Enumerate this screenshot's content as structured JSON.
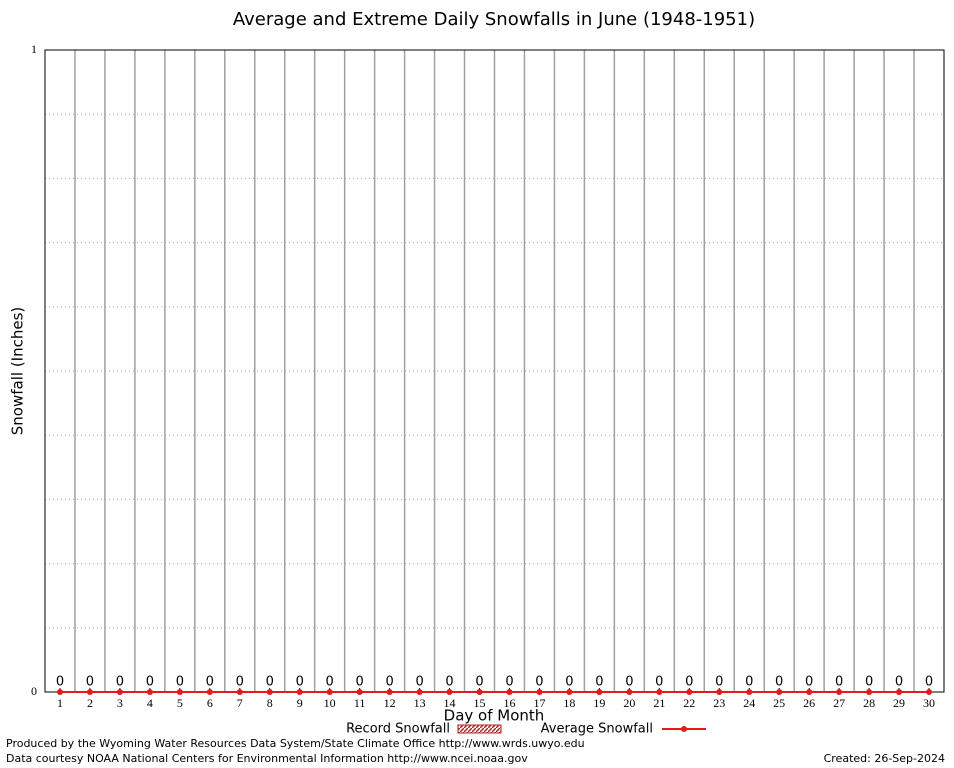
{
  "chart_data": {
    "type": "bar-line",
    "title": "Average and Extreme Daily Snowfalls in June (1948-1951)",
    "x_label": "Day of Month",
    "y_label": "Snowfall (Inches)",
    "categories": [
      "1",
      "2",
      "3",
      "4",
      "5",
      "6",
      "7",
      "8",
      "9",
      "10",
      "11",
      "12",
      "13",
      "14",
      "15",
      "16",
      "17",
      "18",
      "19",
      "20",
      "21",
      "22",
      "23",
      "24",
      "25",
      "26",
      "27",
      "28",
      "29",
      "30"
    ],
    "series": [
      {
        "name": "Record Snowfall",
        "color": "#b22222",
        "values": [
          0,
          0,
          0,
          0,
          0,
          0,
          0,
          0,
          0,
          0,
          0,
          0,
          0,
          0,
          0,
          0,
          0,
          0,
          0,
          0,
          0,
          0,
          0,
          0,
          0,
          0,
          0,
          0,
          0,
          0
        ]
      },
      {
        "name": "Average Snowfall",
        "color": "#e41a1c",
        "values": [
          0,
          0,
          0,
          0,
          0,
          0,
          0,
          0,
          0,
          0,
          0,
          0,
          0,
          0,
          0,
          0,
          0,
          0,
          0,
          0,
          0,
          0,
          0,
          0,
          0,
          0,
          0,
          0,
          0,
          0
        ]
      }
    ],
    "ylim": [
      0,
      1
    ],
    "yticks": [
      0,
      1
    ],
    "minor_yticks": [
      0.1,
      0.2,
      0.3,
      0.4,
      0.5,
      0.6,
      0.7,
      0.8,
      0.9
    ],
    "grid": true,
    "legend": "bottom",
    "footer_left": [
      "Produced by the Wyoming Water Resources Data System/State Climate Office http://www.wrds.uwyo.edu",
      "Data courtesy NOAA National Centers for Environmental Information http://www.ncei.noaa.gov"
    ],
    "footer_right": "Created:  26-Sep-2024"
  }
}
